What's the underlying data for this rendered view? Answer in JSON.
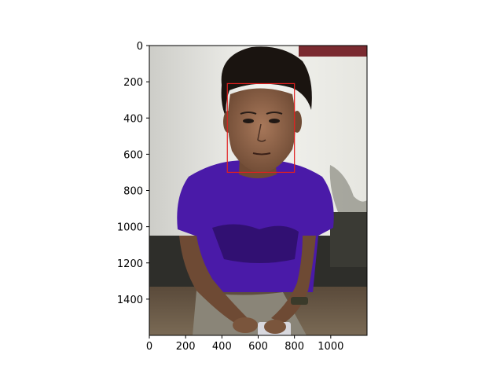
{
  "figure": {
    "image_description_icon": "photo-portrait",
    "image_extent": {
      "x": [
        0,
        1200
      ],
      "y": [
        0,
        1600
      ]
    },
    "detection_box_color": "#e02020",
    "detection_box": {
      "x0": 430,
      "y0": 210,
      "x1": 800,
      "y1": 700
    }
  },
  "axes": {
    "x_ticks": [
      "0",
      "200",
      "400",
      "600",
      "800",
      "1000"
    ],
    "x_tick_values": [
      0,
      200,
      400,
      600,
      800,
      1000
    ],
    "y_ticks": [
      "0",
      "200",
      "400",
      "600",
      "800",
      "1000",
      "1200",
      "1400"
    ],
    "y_tick_values": [
      0,
      200,
      400,
      600,
      800,
      1000,
      1200,
      1400
    ]
  }
}
